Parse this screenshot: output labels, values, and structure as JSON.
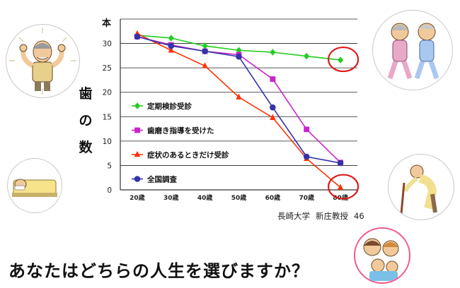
{
  "chart_data": {
    "type": "line",
    "title": "",
    "unit_label": "本",
    "ylabel": "歯の数",
    "xlabel": "",
    "categories": [
      "20歳",
      "30歳",
      "40歳",
      "50歳",
      "60歳",
      "70歳",
      "80歳"
    ],
    "ylim": [
      0,
      35
    ],
    "yticks": [
      0,
      5,
      10,
      15,
      20,
      25,
      30,
      35
    ],
    "grid": true,
    "legend_position": "center-left",
    "series": [
      {
        "name": "定期検診受診",
        "color": "#22cc22",
        "marker": "diamond",
        "values": [
          31.7,
          31.1,
          29.5,
          28.6,
          28.2,
          27.4,
          26.6
        ]
      },
      {
        "name": "歯磨き指導を受けた",
        "color": "#cc22cc",
        "marker": "square",
        "values": [
          31.4,
          29.7,
          28.4,
          27.7,
          22.7,
          12.4,
          5.6
        ]
      },
      {
        "name": "症状のあるときだけ受診",
        "color": "#ff3300",
        "marker": "triangle",
        "values": [
          32.0,
          28.6,
          25.4,
          19.0,
          14.8,
          6.4,
          0.5
        ]
      },
      {
        "name": "全国調査",
        "color": "#3333aa",
        "marker": "circle",
        "values": [
          31.4,
          29.5,
          28.4,
          27.3,
          16.9,
          6.8,
          5.5
        ]
      }
    ],
    "annotations": [
      {
        "type": "highlight-circle",
        "series": "定期検診受診",
        "category": "80歳",
        "color": "#e01818"
      },
      {
        "type": "highlight-circle",
        "series": "症状のあるときだけ受診",
        "category": "80歳",
        "color": "#e01818"
      }
    ]
  },
  "credit": {
    "institution": "長崎大学",
    "professor": "新庄教授",
    "page": "46"
  },
  "question": "あなたはどちらの人生を選びますか？",
  "illustrations": [
    {
      "name": "flexing-elderly-man",
      "position": "top-left"
    },
    {
      "name": "bedridden-person",
      "position": "bottom-left"
    },
    {
      "name": "walking-elderly-couple",
      "position": "top-right"
    },
    {
      "name": "elderly-with-cane",
      "position": "bottom-right"
    },
    {
      "name": "happy-family",
      "position": "bottom-right-corner"
    }
  ]
}
